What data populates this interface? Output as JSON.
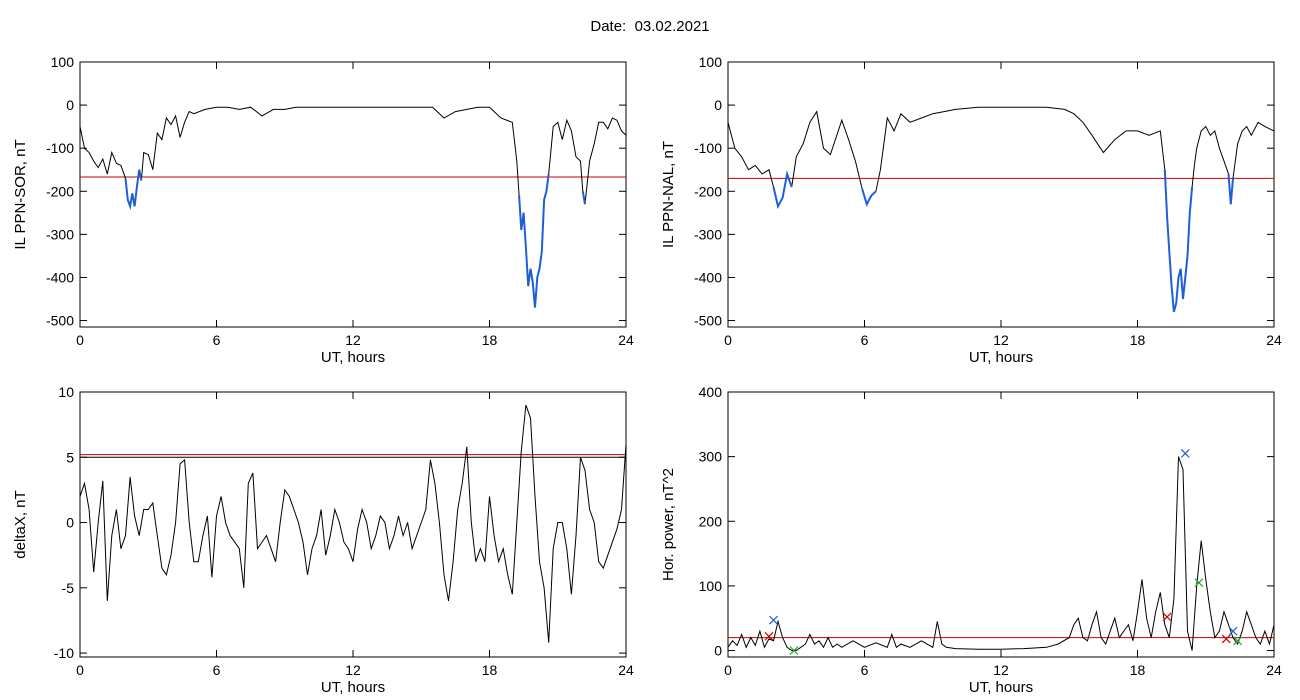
{
  "header": {
    "date_label": "Date:",
    "date_value": "03.02.2021"
  },
  "chart_data": [
    {
      "type": "line",
      "xlabel": "UT, hours",
      "ylabel": "IL PPN-SOR, nT",
      "xlim": [
        0,
        24
      ],
      "ylim": [
        -515,
        100
      ],
      "xticks": [
        0,
        6,
        12,
        18,
        24
      ],
      "yticks": [
        -500,
        -400,
        -300,
        -200,
        -100,
        0,
        100
      ],
      "threshold": {
        "value": -167,
        "color": "#cc0000"
      },
      "series": [
        {
          "color": "#000000",
          "x": [
            0,
            0.2,
            0.4,
            0.6,
            0.8,
            1.0,
            1.2,
            1.4,
            1.6,
            1.8,
            2.0,
            2.1,
            2.2,
            2.3,
            2.4,
            2.5,
            2.6,
            2.7,
            2.8,
            3.0,
            3.2,
            3.4,
            3.6,
            3.8,
            4.0,
            4.2,
            4.4,
            4.6,
            4.8,
            5.0,
            5.5,
            6.0,
            6.5,
            7.0,
            7.5,
            8.0,
            8.5,
            9.0,
            9.5,
            10.0,
            11.0,
            12.0,
            13.0,
            14.0,
            15.0,
            15.5,
            16.0,
            16.5,
            17.0,
            17.5,
            18.0,
            18.5,
            19.0,
            19.2,
            19.3,
            19.4,
            19.5,
            19.6,
            19.7,
            19.8,
            19.9,
            20.0,
            20.1,
            20.2,
            20.3,
            20.4,
            20.5,
            20.6,
            20.8,
            21.0,
            21.2,
            21.4,
            21.6,
            21.8,
            22.0,
            22.1,
            22.2,
            22.4,
            22.6,
            22.8,
            23.0,
            23.2,
            23.4,
            23.6,
            23.8,
            24.0
          ],
          "y": [
            -50,
            -100,
            -110,
            -130,
            -145,
            -125,
            -160,
            -110,
            -135,
            -140,
            -170,
            -220,
            -235,
            -205,
            -235,
            -190,
            -150,
            -175,
            -110,
            -115,
            -150,
            -65,
            -80,
            -30,
            -45,
            -25,
            -75,
            -40,
            -15,
            -20,
            -10,
            -5,
            -5,
            -10,
            -5,
            -25,
            -10,
            -10,
            -5,
            -5,
            -5,
            -5,
            -5,
            -5,
            -5,
            -5,
            -30,
            -15,
            -10,
            -5,
            -5,
            -30,
            -40,
            -130,
            -210,
            -290,
            -250,
            -330,
            -420,
            -380,
            -410,
            -470,
            -400,
            -380,
            -340,
            -220,
            -200,
            -160,
            -50,
            -40,
            -80,
            -35,
            -60,
            -120,
            -130,
            -200,
            -230,
            -130,
            -90,
            -40,
            -40,
            -55,
            -30,
            -35,
            -60,
            -70
          ]
        },
        {
          "color": "#1e5fd8",
          "x": [
            2.0,
            2.1,
            2.2,
            2.3,
            2.4,
            2.5,
            2.6,
            2.7,
            19.3,
            19.4,
            19.5,
            19.6,
            19.7,
            19.8,
            19.9,
            20.0,
            20.1,
            20.2,
            20.3,
            20.4,
            20.5,
            20.6,
            22.1,
            22.2
          ],
          "y": [
            -170,
            -220,
            -235,
            -205,
            -235,
            -190,
            -150,
            -175,
            -210,
            -290,
            -250,
            -330,
            -420,
            -380,
            -410,
            -470,
            -400,
            -380,
            -340,
            -220,
            -200,
            -160,
            -200,
            -230
          ]
        }
      ]
    },
    {
      "type": "line",
      "xlabel": "UT, hours",
      "ylabel": "IL PPN-NAL, nT",
      "xlim": [
        0,
        24
      ],
      "ylim": [
        -515,
        100
      ],
      "xticks": [
        0,
        6,
        12,
        18,
        24
      ],
      "yticks": [
        -500,
        -400,
        -300,
        -200,
        -100,
        0,
        100
      ],
      "threshold": {
        "value": -170,
        "color": "#cc0000"
      },
      "series": [
        {
          "color": "#000000",
          "x": [
            0,
            0.3,
            0.6,
            0.9,
            1.2,
            1.5,
            1.8,
            2.0,
            2.2,
            2.4,
            2.6,
            2.8,
            3.0,
            3.3,
            3.6,
            3.9,
            4.2,
            4.5,
            5.0,
            5.3,
            5.6,
            5.9,
            6.1,
            6.3,
            6.5,
            6.7,
            7.0,
            7.3,
            7.6,
            8.0,
            8.5,
            9.0,
            9.5,
            10.0,
            11.0,
            12.0,
            13.0,
            14.0,
            14.8,
            15.2,
            15.6,
            16.0,
            16.5,
            17.0,
            17.5,
            18.0,
            18.5,
            19.0,
            19.2,
            19.3,
            19.4,
            19.5,
            19.6,
            19.7,
            19.8,
            19.9,
            20.0,
            20.1,
            20.2,
            20.3,
            20.4,
            20.5,
            20.6,
            20.8,
            21.0,
            21.2,
            21.4,
            21.6,
            21.8,
            22.0,
            22.1,
            22.2,
            22.4,
            22.6,
            22.8,
            23.0,
            23.3,
            23.6,
            24.0
          ],
          "y": [
            -40,
            -100,
            -120,
            -150,
            -140,
            -160,
            -150,
            -190,
            -235,
            -215,
            -160,
            -190,
            -120,
            -90,
            -40,
            -15,
            -100,
            -115,
            -35,
            -80,
            -130,
            -195,
            -230,
            -210,
            -200,
            -150,
            -30,
            -60,
            -20,
            -40,
            -30,
            -20,
            -15,
            -10,
            -5,
            -5,
            -5,
            -5,
            -10,
            -20,
            -40,
            -70,
            -110,
            -80,
            -60,
            -60,
            -70,
            -60,
            -150,
            -260,
            -340,
            -420,
            -480,
            -460,
            -400,
            -380,
            -450,
            -400,
            -350,
            -250,
            -190,
            -140,
            -100,
            -60,
            -50,
            -70,
            -60,
            -100,
            -130,
            -160,
            -230,
            -170,
            -90,
            -60,
            -50,
            -70,
            -40,
            -50,
            -60
          ]
        },
        {
          "color": "#1e5fd8",
          "x": [
            2.0,
            2.2,
            2.4,
            2.6,
            2.8,
            5.9,
            6.1,
            6.3,
            6.5,
            19.2,
            19.3,
            19.4,
            19.5,
            19.6,
            19.7,
            19.8,
            19.9,
            20.0,
            20.1,
            20.2,
            20.3,
            20.4,
            22.0,
            22.1,
            22.2
          ],
          "y": [
            -190,
            -235,
            -215,
            -160,
            -190,
            -195,
            -230,
            -210,
            -200,
            -150,
            -260,
            -340,
            -420,
            -480,
            -460,
            -400,
            -380,
            -450,
            -400,
            -350,
            -250,
            -190,
            -160,
            -230,
            -170
          ]
        }
      ]
    },
    {
      "type": "line",
      "xlabel": "UT, hours",
      "ylabel": "deltaX, nT",
      "xlim": [
        0,
        24
      ],
      "ylim": [
        -10.3,
        10
      ],
      "xticks": [
        0,
        6,
        12,
        18,
        24
      ],
      "yticks": [
        -10,
        -5,
        0,
        5,
        10
      ],
      "threshold_lines": [
        {
          "value": 5.2,
          "color": "#cc0000"
        },
        {
          "value": 5.0,
          "color": "#000000"
        }
      ],
      "series": [
        {
          "color": "#000000",
          "x": [
            0,
            0.2,
            0.4,
            0.6,
            0.8,
            1.0,
            1.2,
            1.4,
            1.6,
            1.8,
            2.0,
            2.2,
            2.4,
            2.6,
            2.8,
            3.0,
            3.2,
            3.4,
            3.6,
            3.8,
            4.0,
            4.2,
            4.4,
            4.6,
            4.8,
            5.0,
            5.2,
            5.4,
            5.6,
            5.8,
            6.0,
            6.2,
            6.4,
            6.6,
            6.8,
            7.0,
            7.2,
            7.4,
            7.6,
            7.8,
            8.0,
            8.2,
            8.4,
            8.6,
            8.8,
            9.0,
            9.2,
            9.4,
            9.6,
            9.8,
            10.0,
            10.2,
            10.4,
            10.6,
            10.8,
            11.0,
            11.2,
            11.4,
            11.6,
            11.8,
            12.0,
            12.2,
            12.4,
            12.6,
            12.8,
            13.0,
            13.2,
            13.4,
            13.6,
            13.8,
            14.0,
            14.2,
            14.4,
            14.6,
            14.8,
            15.0,
            15.2,
            15.4,
            15.6,
            15.8,
            16.0,
            16.2,
            16.4,
            16.6,
            16.8,
            17.0,
            17.2,
            17.4,
            17.6,
            17.8,
            18.0,
            18.2,
            18.4,
            18.6,
            18.8,
            19.0,
            19.2,
            19.4,
            19.6,
            19.8,
            20.0,
            20.2,
            20.4,
            20.6,
            20.8,
            21.0,
            21.2,
            21.4,
            21.6,
            21.8,
            22.0,
            22.2,
            22.4,
            22.6,
            22.8,
            23.0,
            23.2,
            23.4,
            23.6,
            23.8,
            24.0
          ],
          "y": [
            2,
            3,
            1,
            -3.8,
            0,
            3.2,
            -6,
            -1,
            1,
            -2,
            -1,
            3.5,
            0.5,
            -1,
            1,
            1,
            1.5,
            -1,
            -3.5,
            -4,
            -2.5,
            0,
            4.5,
            4.8,
            0,
            -3,
            -3,
            -1,
            0.5,
            -4.2,
            0.5,
            2,
            0,
            -1,
            -1.5,
            -2,
            -5,
            3,
            3.8,
            -2,
            -1.5,
            -1,
            -2,
            -3,
            0,
            2.5,
            2,
            1,
            0,
            -1.5,
            -4,
            -2,
            -1,
            1,
            -2.5,
            -1,
            1,
            0,
            -1.5,
            -2,
            -3,
            -0.5,
            1,
            0,
            -2,
            -1,
            0.5,
            0,
            -2,
            -1,
            0.5,
            -1,
            0,
            -2,
            -1,
            0,
            1,
            4.8,
            3,
            0,
            -4,
            -6,
            -3,
            1,
            3,
            5.8,
            0,
            -3,
            -2,
            -3,
            2,
            -1,
            -3,
            -2,
            -4,
            -5.5,
            0,
            5.5,
            9,
            8,
            2,
            -3,
            -5,
            -9.2,
            -2,
            0,
            0,
            -2,
            -5.5,
            -1,
            5,
            4,
            1,
            0,
            -3,
            -3.5,
            -2.5,
            -1.5,
            -0.5,
            1,
            6
          ]
        }
      ]
    },
    {
      "type": "line",
      "xlabel": "UT, hours",
      "ylabel": "Hor. power, nT^2",
      "xlim": [
        0,
        24
      ],
      "ylim": [
        -10,
        400
      ],
      "xticks": [
        0,
        6,
        12,
        18,
        24
      ],
      "yticks": [
        0,
        100,
        200,
        300,
        400
      ],
      "threshold": {
        "value": 20,
        "color": "#cc0000"
      },
      "series": [
        {
          "color": "#000000",
          "x": [
            0,
            0.2,
            0.4,
            0.6,
            0.8,
            1.0,
            1.2,
            1.4,
            1.6,
            1.8,
            2.0,
            2.2,
            2.4,
            2.6,
            2.8,
            3.0,
            3.2,
            3.4,
            3.6,
            3.8,
            4.0,
            4.2,
            4.4,
            4.6,
            4.8,
            5.0,
            5.5,
            6.0,
            6.5,
            7.0,
            7.2,
            7.4,
            7.6,
            8.0,
            8.5,
            9.0,
            9.2,
            9.4,
            9.6,
            10.0,
            11.0,
            12.0,
            13.0,
            14.0,
            14.5,
            15.0,
            15.2,
            15.4,
            15.6,
            15.8,
            16.0,
            16.2,
            16.4,
            16.6,
            16.8,
            17.0,
            17.2,
            17.4,
            17.6,
            17.8,
            18.0,
            18.2,
            18.4,
            18.6,
            18.8,
            19.0,
            19.2,
            19.4,
            19.6,
            19.8,
            20.0,
            20.2,
            20.4,
            20.6,
            20.8,
            21.0,
            21.2,
            21.4,
            21.6,
            21.8,
            22.0,
            22.2,
            22.4,
            22.6,
            22.8,
            23.0,
            23.2,
            23.4,
            23.6,
            23.8,
            24.0
          ],
          "y": [
            5,
            15,
            8,
            25,
            5,
            20,
            8,
            30,
            5,
            18,
            15,
            45,
            20,
            5,
            0,
            0,
            5,
            10,
            25,
            10,
            15,
            5,
            20,
            5,
            10,
            5,
            15,
            5,
            12,
            5,
            25,
            5,
            10,
            5,
            15,
            5,
            45,
            10,
            5,
            3,
            2,
            2,
            3,
            5,
            10,
            20,
            40,
            50,
            20,
            15,
            40,
            60,
            20,
            10,
            30,
            50,
            20,
            30,
            40,
            15,
            60,
            110,
            50,
            20,
            60,
            90,
            40,
            20,
            80,
            300,
            280,
            30,
            0,
            100,
            170,
            110,
            60,
            20,
            30,
            60,
            40,
            20,
            10,
            30,
            60,
            40,
            20,
            10,
            30,
            10,
            40
          ]
        }
      ],
      "markers": [
        {
          "x": 2.0,
          "y": 47,
          "symbol": "x",
          "color": "#1e5fd8"
        },
        {
          "x": 20.1,
          "y": 305,
          "symbol": "x",
          "color": "#1e5fd8"
        },
        {
          "x": 22.2,
          "y": 30,
          "symbol": "x",
          "color": "#1e5fd8"
        },
        {
          "x": 19.3,
          "y": 52,
          "symbol": "x",
          "color": "#cc0000"
        },
        {
          "x": 1.8,
          "y": 22,
          "symbol": "x",
          "color": "#cc0000"
        },
        {
          "x": 21.9,
          "y": 18,
          "symbol": "x",
          "color": "#cc0000"
        },
        {
          "x": 2.9,
          "y": 0,
          "symbol": "x",
          "color": "#22aa22"
        },
        {
          "x": 20.7,
          "y": 105,
          "symbol": "x",
          "color": "#22aa22"
        },
        {
          "x": 22.4,
          "y": 15,
          "symbol": "x",
          "color": "#22aa22"
        }
      ]
    }
  ]
}
